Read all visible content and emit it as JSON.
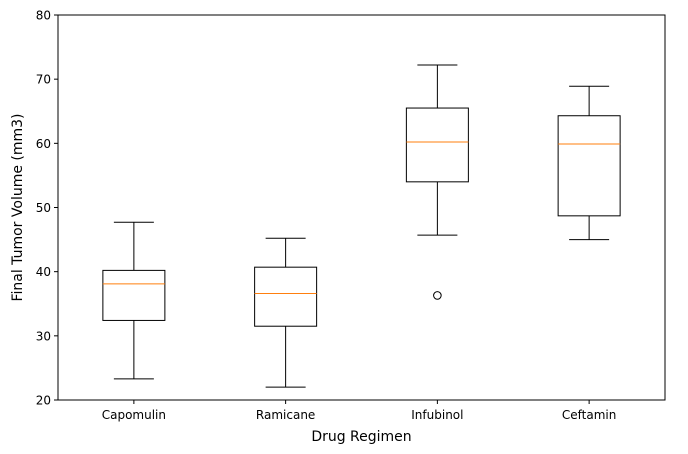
{
  "chart_data": {
    "type": "box",
    "title": "",
    "xlabel": "Drug Regimen",
    "ylabel": "Final Tumor Volume (mm3)",
    "ylim": [
      20,
      80
    ],
    "yticks": [
      20,
      30,
      40,
      50,
      60,
      70,
      80
    ],
    "grid": false,
    "categories": [
      "Capomulin",
      "Ramicane",
      "Infubinol",
      "Ceftamin"
    ],
    "boxes": [
      {
        "name": "Capomulin",
        "whisker_low": 23.3,
        "q1": 32.4,
        "median": 38.1,
        "q3": 40.2,
        "whisker_high": 47.7,
        "outliers": []
      },
      {
        "name": "Ramicane",
        "whisker_low": 22.0,
        "q1": 31.5,
        "median": 36.6,
        "q3": 40.7,
        "whisker_high": 45.2,
        "outliers": []
      },
      {
        "name": "Infubinol",
        "whisker_low": 45.7,
        "q1": 54.0,
        "median": 60.2,
        "q3": 65.5,
        "whisker_high": 72.2,
        "outliers": [
          36.3
        ]
      },
      {
        "name": "Ceftamin",
        "whisker_low": 45.0,
        "q1": 48.7,
        "median": 59.9,
        "q3": 64.3,
        "whisker_high": 68.9,
        "outliers": []
      }
    ],
    "colors": {
      "box": "#000000",
      "median": "#ff7f0e",
      "axes": "#000000"
    }
  }
}
